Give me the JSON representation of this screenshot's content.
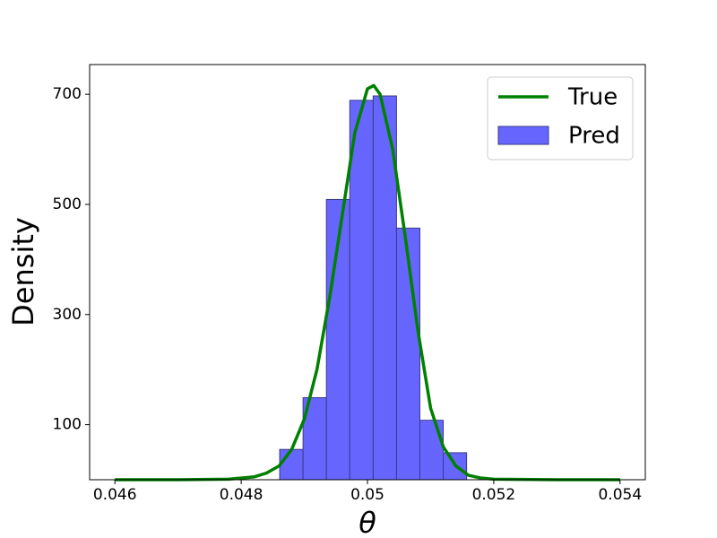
{
  "chart_data": {
    "type": "hist_line",
    "xlabel": "θ",
    "ylabel": "Density",
    "xlim": [
      0.0456,
      0.0544
    ],
    "ylim": [
      0,
      754
    ],
    "xticks": [
      0.046,
      0.048,
      0.05,
      0.052,
      0.054
    ],
    "yticks": [
      100,
      300,
      500,
      700
    ],
    "legend": "upper right",
    "histogram": {
      "name": "Pred",
      "color": "#6666ff",
      "edgecolor": "#3a3a8a",
      "bins": [
        0.04861,
        0.04898,
        0.04935,
        0.04972,
        0.05009,
        0.05046,
        0.05083,
        0.0512,
        0.05157
      ],
      "counts": [
        55,
        149,
        509,
        689,
        697,
        457,
        108,
        49
      ]
    },
    "line": {
      "name": "True",
      "color": "#008000",
      "x": [
        0.046,
        0.047,
        0.0478,
        0.0482,
        0.0484,
        0.0486,
        0.0488,
        0.049,
        0.0492,
        0.0494,
        0.0496,
        0.0498,
        0.05,
        0.0501,
        0.0502,
        0.0504,
        0.0506,
        0.0508,
        0.051,
        0.0512,
        0.0514,
        0.0516,
        0.0518,
        0.052,
        0.053,
        0.054
      ],
      "values": [
        0,
        0,
        1,
        5,
        12,
        25,
        55,
        110,
        200,
        330,
        480,
        630,
        710,
        716,
        700,
        600,
        440,
        270,
        130,
        60,
        25,
        8,
        3,
        1,
        0,
        0
      ]
    }
  }
}
